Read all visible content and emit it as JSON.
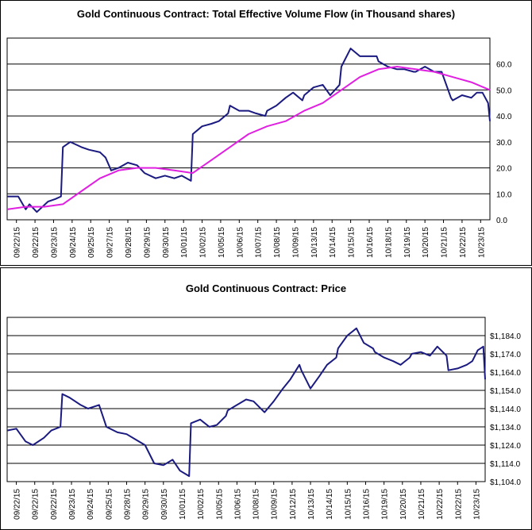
{
  "chart_data": [
    {
      "type": "line",
      "title": "Gold Continuous Contract: Total Effective Volume Flow (in Thousand shares)",
      "ylim": [
        0,
        70
      ],
      "y_ticks": [
        "0.0",
        "10.0",
        "20.0",
        "30.0",
        "40.0",
        "50.0",
        "60.0"
      ],
      "y_tick_values": [
        0,
        10,
        20,
        30,
        40,
        50,
        60
      ],
      "grid": true,
      "x_tick_labels": [
        "09/22/15",
        "09/22/15",
        "09/23/15",
        "09/24/15",
        "09/25/15",
        "09/27/15",
        "09/28/15",
        "09/29/15",
        "09/30/15",
        "10/01/15",
        "10/02/15",
        "10/05/15",
        "10/06/15",
        "10/07/15",
        "10/08/15",
        "10/09/15",
        "10/13/15",
        "10/14/15",
        "10/15/15",
        "10/16/15",
        "10/18/15",
        "10/19/15",
        "10/20/15",
        "10/21/15",
        "10/22/15",
        "10/23/15"
      ],
      "series": [
        {
          "color": "#1a1a80",
          "x": [
            0,
            0.6,
            1.0,
            1.2,
            1.6,
            2.2,
            2.6,
            2.9,
            3.0,
            3.4,
            4.0,
            4.4,
            5.0,
            5.3,
            5.6,
            6.0,
            6.5,
            7.0,
            7.4,
            8.0,
            8.5,
            9.0,
            9.4,
            9.9,
            10.0,
            10.5,
            11.0,
            11.4,
            11.9,
            12.0,
            12.5,
            13.0,
            13.4,
            13.9,
            14.0,
            14.5,
            15.0,
            15.4,
            15.9,
            16.0,
            16.5,
            17.0,
            17.4,
            17.9,
            18.0,
            18.5,
            19.0,
            19.4,
            19.9,
            20.0,
            20.5,
            21.0,
            21.4,
            21.9,
            22.0,
            22.5,
            23.0,
            23.4,
            23.9,
            24.0,
            24.5,
            25.0,
            25.3,
            25.6,
            25.9,
            26.0
          ],
          "y": [
            9,
            9,
            4,
            6,
            3,
            7,
            8,
            9,
            28,
            30,
            28,
            27,
            26,
            24,
            19,
            20,
            22,
            21,
            18,
            16,
            17,
            16,
            17,
            15,
            33,
            36,
            37,
            38,
            41,
            44,
            42,
            42,
            41,
            40,
            42,
            44,
            47,
            49,
            46,
            48,
            51,
            52,
            48,
            52,
            59,
            66,
            63,
            63,
            63,
            61,
            59,
            58,
            58,
            57,
            57,
            59,
            57,
            57,
            47,
            46,
            48,
            47,
            49,
            49,
            45,
            38
          ]
        },
        {
          "color": "#e020e0",
          "x": [
            0,
            1,
            2,
            3,
            4,
            5,
            6,
            7,
            8,
            9,
            10,
            11,
            12,
            13,
            14,
            15,
            16,
            17,
            18,
            19,
            20,
            21,
            22,
            23,
            24,
            25,
            26
          ],
          "y": [
            4,
            5,
            5,
            6,
            11,
            16,
            19,
            20,
            20,
            19,
            18,
            23,
            28,
            33,
            36,
            38,
            42,
            45,
            50,
            55,
            58,
            59,
            58,
            57,
            55,
            53,
            50
          ]
        }
      ]
    },
    {
      "type": "line",
      "title": "Gold Continuous Contract: Price",
      "ylim": [
        1104,
        1194
      ],
      "y_ticks": [
        "$1,104.0",
        "$1,114.0",
        "$1,124.0",
        "$1,134.0",
        "$1,144.0",
        "$1,154.0",
        "$1,164.0",
        "$1,174.0",
        "$1,184.0"
      ],
      "y_tick_values": [
        1104,
        1114,
        1124,
        1134,
        1144,
        1154,
        1164,
        1174,
        1184
      ],
      "grid": true,
      "x_tick_labels": [
        "09/22/15",
        "09/22/15",
        "09/22/15",
        "09/23/15",
        "09/24/15",
        "09/25/15",
        "09/28/15",
        "09/29/15",
        "09/30/15",
        "10/01/15",
        "10/02/15",
        "10/05/15",
        "10/06/15",
        "10/08/15",
        "10/09/15",
        "10/12/15",
        "10/13/15",
        "10/14/15",
        "10/15/15",
        "10/16/15",
        "10/19/15",
        "10/20/15",
        "10/21/15",
        "10/22/15",
        "10/22/15",
        "10/23/15"
      ],
      "series": [
        {
          "color": "#1a1a80",
          "x": [
            0,
            0.5,
            1.0,
            1.4,
            2.0,
            2.4,
            2.9,
            3.0,
            3.4,
            4.0,
            4.4,
            5.0,
            5.4,
            6.0,
            6.5,
            7.0,
            7.5,
            8.0,
            8.5,
            9.0,
            9.4,
            9.9,
            10.0,
            10.5,
            11.0,
            11.4,
            11.9,
            12.0,
            12.5,
            13.0,
            13.4,
            13.9,
            14.0,
            14.5,
            15.0,
            15.4,
            15.9,
            16.0,
            16.5,
            17.0,
            17.4,
            17.9,
            18.0,
            18.5,
            19.0,
            19.4,
            19.9,
            20.0,
            20.5,
            21.0,
            21.4,
            21.9,
            22.0,
            22.5,
            23.0,
            23.4,
            23.9,
            24.0,
            24.5,
            25.0,
            25.3,
            25.6,
            25.9,
            26.0
          ],
          "y": [
            1132,
            1133,
            1126,
            1124,
            1128,
            1132,
            1134,
            1152,
            1150,
            1146,
            1144,
            1146,
            1134,
            1131,
            1130,
            1127,
            1124,
            1114,
            1113,
            1116,
            1110,
            1107,
            1136,
            1138,
            1134,
            1135,
            1140,
            1143,
            1146,
            1149,
            1148,
            1143,
            1142,
            1148,
            1155,
            1160,
            1168,
            1165,
            1155,
            1162,
            1168,
            1172,
            1177,
            1184,
            1188,
            1180,
            1177,
            1175,
            1172,
            1170,
            1168,
            1172,
            1174,
            1175,
            1173,
            1178,
            1173,
            1165,
            1166,
            1168,
            1170,
            1176,
            1178,
            1160
          ]
        }
      ]
    }
  ]
}
